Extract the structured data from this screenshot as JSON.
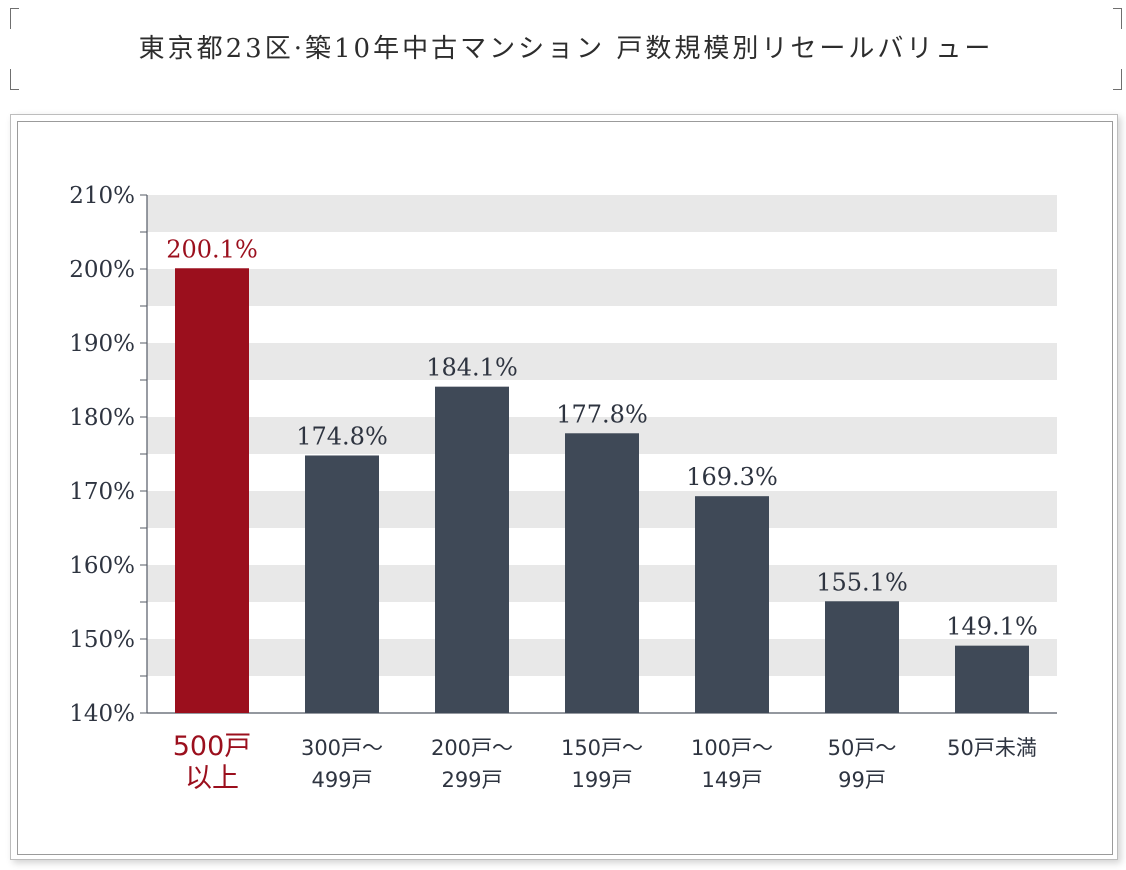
{
  "title": "東京都23区·築10年中古マンション 戸数規模別リセールバリュー",
  "chart_data": {
    "type": "bar",
    "categories": [
      [
        "500戸",
        "以上"
      ],
      [
        "300戸～",
        "499戸"
      ],
      [
        "200戸～",
        "299戸"
      ],
      [
        "150戸～",
        "199戸"
      ],
      [
        "100戸～",
        "149戸"
      ],
      [
        "50戸～",
        "99戸"
      ],
      [
        "50戸未満"
      ]
    ],
    "values": [
      200.1,
      174.8,
      184.1,
      177.8,
      169.3,
      155.1,
      149.1
    ],
    "value_labels": [
      "200.1%",
      "174.8%",
      "184.1%",
      "177.8%",
      "169.3%",
      "155.1%",
      "149.1%"
    ],
    "ylim": [
      140,
      210
    ],
    "y_ticks": [
      "140%",
      "150%",
      "160%",
      "170%",
      "180%",
      "190%",
      "200%",
      "210%"
    ],
    "y_tick_values": [
      140,
      150,
      160,
      170,
      180,
      190,
      200,
      210
    ],
    "highlight_index": 0,
    "colors": {
      "highlight": "#9b0f1d",
      "bar": "#3f4957",
      "axis_text": "#2e3440",
      "grid_band": "#e8e8e8"
    }
  }
}
